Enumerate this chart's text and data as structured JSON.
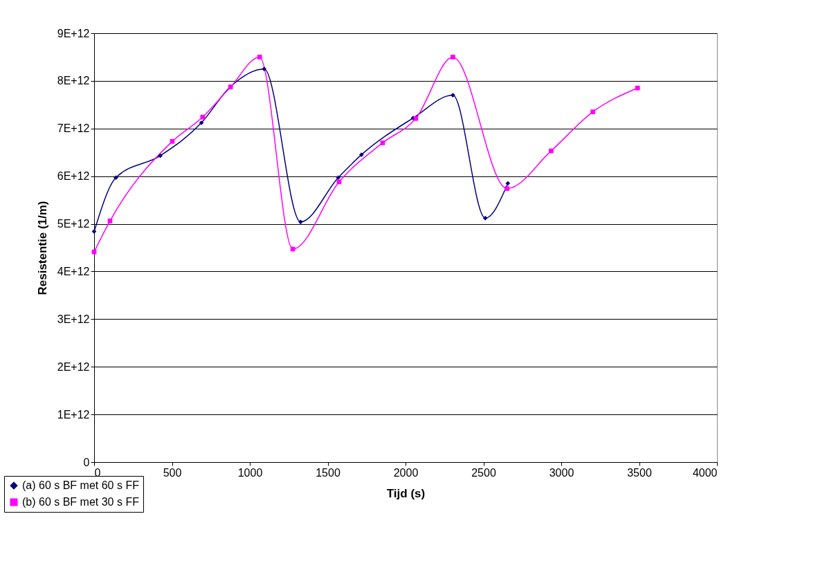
{
  "chart_data": {
    "type": "line",
    "xlabel": "Tijd (s)",
    "ylabel": "Resistentie (1/m)",
    "xlim": [
      0,
      4000
    ],
    "xticks": [
      0,
      500,
      1000,
      1500,
      2000,
      2500,
      3000,
      3500,
      4000
    ],
    "ylim": [
      0,
      9000000000000.0
    ],
    "yticks": [
      0,
      {
        "value": 1000000000000.0,
        "label": "1E+12"
      },
      {
        "value": 2000000000000.0,
        "label": "2E+12"
      },
      {
        "value": 3000000000000.0,
        "label": "3E+12"
      },
      {
        "value": 4000000000000.0,
        "label": "4E+12"
      },
      {
        "value": 5000000000000.0,
        "label": "5E+12"
      },
      {
        "value": 6000000000000.0,
        "label": "6E+12"
      },
      {
        "value": 7000000000000.0,
        "label": "7E+12"
      },
      {
        "value": 8000000000000.0,
        "label": "8E+12"
      },
      {
        "value": 9000000000000.0,
        "label": "9E+12"
      }
    ],
    "grid": "y",
    "legend": "bottom left",
    "series": [
      {
        "name": "(a) 60 s BF met 60 s FF",
        "color": "#000080",
        "marker": "diamond",
        "x": [
          0,
          140,
          425,
          689,
          876,
          1092,
          1326,
          1568,
          1717,
          2049,
          2304,
          2512,
          2657
        ],
        "values": [
          4840000000000.0,
          5970000000000.0,
          6430000000000.0,
          7120000000000.0,
          7880000000000.0,
          8250000000000.0,
          5040000000000.0,
          5970000000000.0,
          6450000000000.0,
          7220000000000.0,
          7700000000000.0,
          5120000000000.0,
          5850000000000.0
        ]
      },
      {
        "name": "(b) 60 s BF met 30 s FF",
        "color": "#ff00ff",
        "marker": "square",
        "x": [
          0,
          102,
          502,
          697,
          876,
          1063,
          1276,
          1573,
          1853,
          2066,
          2304,
          2652,
          2935,
          3203,
          3490
        ],
        "values": [
          4410000000000.0,
          5060000000000.0,
          6730000000000.0,
          7240000000000.0,
          7870000000000.0,
          8500000000000.0,
          4470000000000.0,
          5880000000000.0,
          6700000000000.0,
          7210000000000.0,
          8500000000000.0,
          5740000000000.0,
          6530000000000.0,
          7350000000000.0,
          7850000000000.0
        ]
      }
    ]
  }
}
